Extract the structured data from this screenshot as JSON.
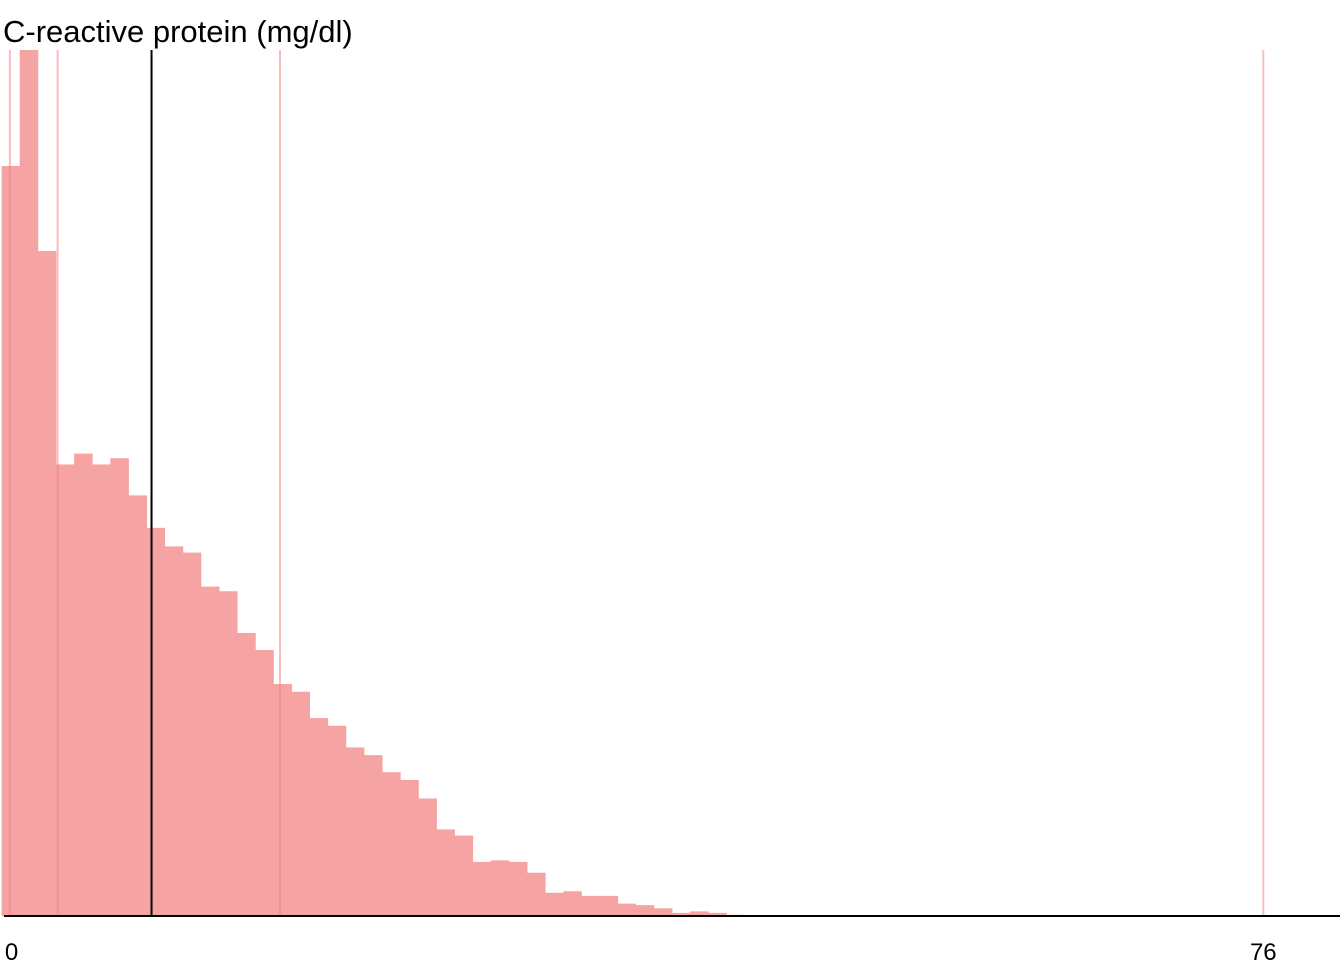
{
  "chart_data": {
    "type": "bar",
    "title": "C-reactive protein (mg/dl)",
    "xlabel": "",
    "ylabel": "",
    "xlim": [
      -0.7,
      80.9
    ],
    "ylim": [
      0,
      56
    ],
    "xticks": [
      {
        "value": 0,
        "label": "0"
      },
      {
        "value": 76,
        "label": "76"
      }
    ],
    "bin_width": 1.1,
    "bin_start": -0.6,
    "values": [
      48.5,
      56,
      43,
      29.2,
      29.9,
      29.2,
      29.6,
      27.2,
      25.1,
      23.9,
      23.5,
      21.3,
      21,
      18.3,
      17.2,
      15,
      14.5,
      12.8,
      12.3,
      10.9,
      10.4,
      9.3,
      8.8,
      7.6,
      5.6,
      5.2,
      3.5,
      3.6,
      3.5,
      2.8,
      1.5,
      1.6,
      1.3,
      1.3,
      0.8,
      0.7,
      0.5,
      0.2,
      0.3,
      0.2,
      0.08,
      0.02,
      0.02,
      0.02,
      0.04,
      0.03
    ],
    "reference_lines": [
      {
        "value": -0.1,
        "role": "quantile"
      },
      {
        "value": 2.8,
        "role": "quantile"
      },
      {
        "value": 16.3,
        "role": "quantile"
      },
      {
        "value": 76,
        "role": "quantile"
      }
    ],
    "central_line": {
      "value": 8.5,
      "role": "mean"
    },
    "grid": false,
    "legend": "none",
    "colors": {
      "bar": "#f5a3a3",
      "reference_line": "#f08080",
      "central_line": "#000000",
      "axis": "#000000"
    }
  }
}
